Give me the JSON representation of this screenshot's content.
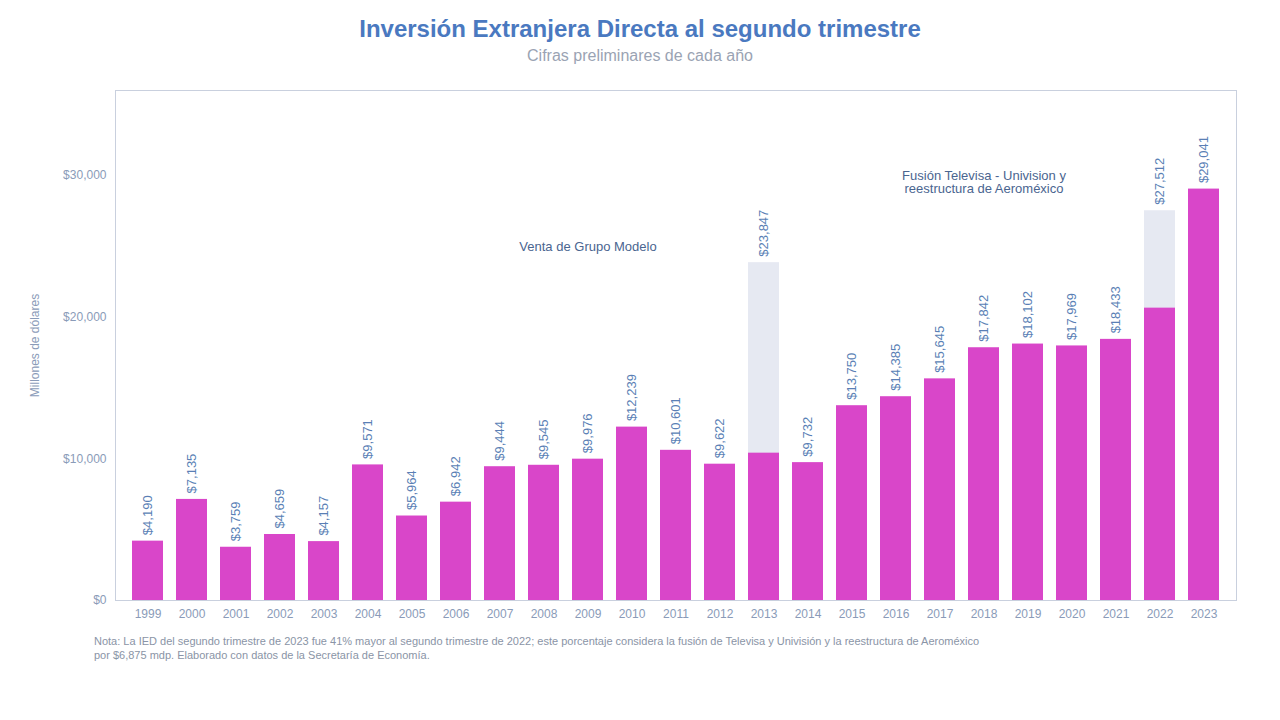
{
  "chart_data": {
    "type": "bar",
    "title": "Inversión Extranjera Directa al segundo trimestre",
    "subtitle": "Cifras preliminares de cada año",
    "y_label": "Millones de dólares",
    "categories": [
      "1999",
      "2000",
      "2001",
      "2002",
      "2003",
      "2004",
      "2005",
      "2006",
      "2007",
      "2008",
      "2009",
      "2010",
      "2011",
      "2012",
      "2013",
      "2014",
      "2015",
      "2016",
      "2017",
      "2018",
      "2019",
      "2020",
      "2021",
      "2022",
      "2023"
    ],
    "values": [
      4190,
      7135,
      3759,
      4659,
      4157,
      9571,
      5964,
      6942,
      9444,
      9545,
      9976,
      12239,
      10601,
      9622,
      23847,
      9732,
      13750,
      14385,
      15645,
      17842,
      18102,
      17969,
      18433,
      27512,
      29041
    ],
    "value_labels": [
      "$4,190",
      "$7,135",
      "$3,759",
      "$4,659",
      "$4,157",
      "$9,571",
      "$5,964",
      "$6,942",
      "$9,444",
      "$9,545",
      "$9,976",
      "$12,239",
      "$10,601",
      "$9,622",
      "$23,847",
      "$9,732",
      "$13,750",
      "$14,385",
      "$15,645",
      "$17,842",
      "$18,102",
      "$17,969",
      "$18,433",
      "$27,512",
      "$29,041"
    ],
    "values_without_operations": [
      null,
      null,
      null,
      null,
      null,
      null,
      null,
      null,
      null,
      null,
      null,
      null,
      null,
      null,
      10400,
      null,
      null,
      null,
      null,
      null,
      null,
      null,
      null,
      20637,
      null
    ],
    "color": "#d946c9",
    "operations_color": "#e6e9f2",
    "data_labels": true,
    "grid": false,
    "ylim": [
      0,
      36000
    ],
    "yticks": [
      {
        "value": 0,
        "label": "$0"
      },
      {
        "value": 10000,
        "label": "$10,000"
      },
      {
        "value": 20000,
        "label": "$20,000"
      },
      {
        "value": 30000,
        "label": "$30,000"
      }
    ],
    "annotations": [
      {
        "text": "Venta de Grupo Modelo",
        "x": "2009",
        "y": 25000
      },
      {
        "text": "Fusión Televisa - Univision y reestructura de Aeroméxico",
        "x": "2018",
        "y": 29500
      }
    ],
    "note": "Nota: La IED del segundo trimestre de 2023 fue 41% mayor al segundo trimestre de 2022; este porcentaje considera la fusión de Televisa y Univisión y la reestructura de Aeroméxico por $6,875 mdp. Elaborado con datos de la Secretaría de Economía."
  }
}
